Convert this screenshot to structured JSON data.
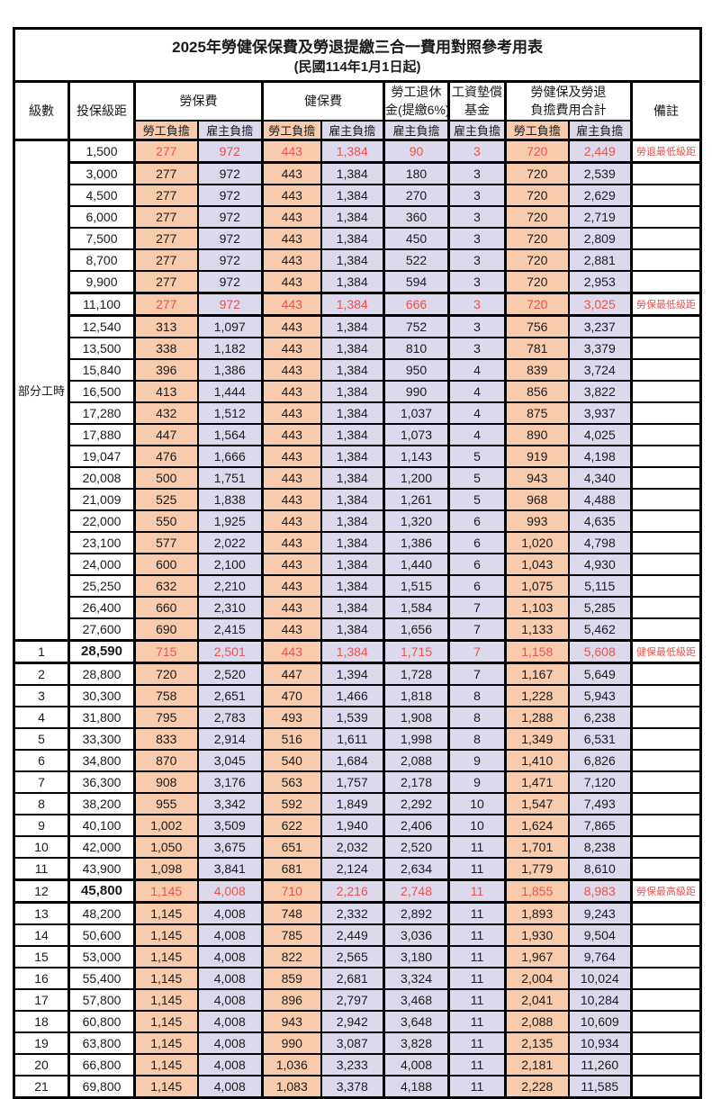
{
  "title": "2025年勞健保保費及勞退提繳三合一費用對照參考用表",
  "subtitle": "(民國114年1月1日起)",
  "colors": {
    "employee_bg": "#F8CBAD",
    "employer_bg": "#DCD9EC",
    "highlight_text": "#E9544F"
  },
  "headers": {
    "level": "級數",
    "bracket": "投保級距",
    "labor_insurance": "勞保費",
    "health_insurance": "健保費",
    "pension_line1": "勞工退休",
    "pension_line2": "金(提繳6%)",
    "wage_fund_line1": "工資墊償",
    "wage_fund_line2": "基金",
    "total_line1": "勞健保及勞退",
    "total_line2": "負擔費用合計",
    "notes": "備註",
    "employee_label": "勞工負擔",
    "employer_label": "雇主負擔"
  },
  "part_time_label": "部分工時",
  "part_time_rowspan": 23,
  "rows": [
    {
      "level": null,
      "bracket": "1,500",
      "values": [
        "277",
        "972",
        "443",
        "1,384",
        "90",
        "3",
        "720",
        "2,449"
      ],
      "note": "勞退最低級距",
      "highlight": true,
      "bold": false
    },
    {
      "level": null,
      "bracket": "3,000",
      "values": [
        "277",
        "972",
        "443",
        "1,384",
        "180",
        "3",
        "720",
        "2,539"
      ],
      "note": "",
      "highlight": false,
      "bold": false
    },
    {
      "level": null,
      "bracket": "4,500",
      "values": [
        "277",
        "972",
        "443",
        "1,384",
        "270",
        "3",
        "720",
        "2,629"
      ],
      "note": "",
      "highlight": false,
      "bold": false
    },
    {
      "level": null,
      "bracket": "6,000",
      "values": [
        "277",
        "972",
        "443",
        "1,384",
        "360",
        "3",
        "720",
        "2,719"
      ],
      "note": "",
      "highlight": false,
      "bold": false
    },
    {
      "level": null,
      "bracket": "7,500",
      "values": [
        "277",
        "972",
        "443",
        "1,384",
        "450",
        "3",
        "720",
        "2,809"
      ],
      "note": "",
      "highlight": false,
      "bold": false
    },
    {
      "level": null,
      "bracket": "8,700",
      "values": [
        "277",
        "972",
        "443",
        "1,384",
        "522",
        "3",
        "720",
        "2,881"
      ],
      "note": "",
      "highlight": false,
      "bold": false
    },
    {
      "level": null,
      "bracket": "9,900",
      "values": [
        "277",
        "972",
        "443",
        "1,384",
        "594",
        "3",
        "720",
        "2,953"
      ],
      "note": "",
      "highlight": false,
      "bold": false
    },
    {
      "level": null,
      "bracket": "11,100",
      "values": [
        "277",
        "972",
        "443",
        "1,384",
        "666",
        "3",
        "720",
        "3,025"
      ],
      "note": "勞保最低級距",
      "highlight": true,
      "bold": false
    },
    {
      "level": null,
      "bracket": "12,540",
      "values": [
        "313",
        "1,097",
        "443",
        "1,384",
        "752",
        "3",
        "756",
        "3,237"
      ],
      "note": "",
      "highlight": false,
      "bold": false
    },
    {
      "level": null,
      "bracket": "13,500",
      "values": [
        "338",
        "1,182",
        "443",
        "1,384",
        "810",
        "3",
        "781",
        "3,379"
      ],
      "note": "",
      "highlight": false,
      "bold": false
    },
    {
      "level": null,
      "bracket": "15,840",
      "values": [
        "396",
        "1,386",
        "443",
        "1,384",
        "950",
        "4",
        "839",
        "3,724"
      ],
      "note": "",
      "highlight": false,
      "bold": false
    },
    {
      "level": null,
      "bracket": "16,500",
      "values": [
        "413",
        "1,444",
        "443",
        "1,384",
        "990",
        "4",
        "856",
        "3,822"
      ],
      "note": "",
      "highlight": false,
      "bold": false
    },
    {
      "level": null,
      "bracket": "17,280",
      "values": [
        "432",
        "1,512",
        "443",
        "1,384",
        "1,037",
        "4",
        "875",
        "3,937"
      ],
      "note": "",
      "highlight": false,
      "bold": false
    },
    {
      "level": null,
      "bracket": "17,880",
      "values": [
        "447",
        "1,564",
        "443",
        "1,384",
        "1,073",
        "4",
        "890",
        "4,025"
      ],
      "note": "",
      "highlight": false,
      "bold": false
    },
    {
      "level": null,
      "bracket": "19,047",
      "values": [
        "476",
        "1,666",
        "443",
        "1,384",
        "1,143",
        "5",
        "919",
        "4,198"
      ],
      "note": "",
      "highlight": false,
      "bold": false
    },
    {
      "level": null,
      "bracket": "20,008",
      "values": [
        "500",
        "1,751",
        "443",
        "1,384",
        "1,200",
        "5",
        "943",
        "4,340"
      ],
      "note": "",
      "highlight": false,
      "bold": false
    },
    {
      "level": null,
      "bracket": "21,009",
      "values": [
        "525",
        "1,838",
        "443",
        "1,384",
        "1,261",
        "5",
        "968",
        "4,488"
      ],
      "note": "",
      "highlight": false,
      "bold": false
    },
    {
      "level": null,
      "bracket": "22,000",
      "values": [
        "550",
        "1,925",
        "443",
        "1,384",
        "1,320",
        "6",
        "993",
        "4,635"
      ],
      "note": "",
      "highlight": false,
      "bold": false
    },
    {
      "level": null,
      "bracket": "23,100",
      "values": [
        "577",
        "2,022",
        "443",
        "1,384",
        "1,386",
        "6",
        "1,020",
        "4,798"
      ],
      "note": "",
      "highlight": false,
      "bold": false
    },
    {
      "level": null,
      "bracket": "24,000",
      "values": [
        "600",
        "2,100",
        "443",
        "1,384",
        "1,440",
        "6",
        "1,043",
        "4,930"
      ],
      "note": "",
      "highlight": false,
      "bold": false
    },
    {
      "level": null,
      "bracket": "25,250",
      "values": [
        "632",
        "2,210",
        "443",
        "1,384",
        "1,515",
        "6",
        "1,075",
        "5,115"
      ],
      "note": "",
      "highlight": false,
      "bold": false
    },
    {
      "level": null,
      "bracket": "26,400",
      "values": [
        "660",
        "2,310",
        "443",
        "1,384",
        "1,584",
        "7",
        "1,103",
        "5,285"
      ],
      "note": "",
      "highlight": false,
      "bold": false
    },
    {
      "level": null,
      "bracket": "27,600",
      "values": [
        "690",
        "2,415",
        "443",
        "1,384",
        "1,656",
        "7",
        "1,133",
        "5,462"
      ],
      "note": "",
      "highlight": false,
      "bold": false
    },
    {
      "level": "1",
      "bracket": "28,590",
      "values": [
        "715",
        "2,501",
        "443",
        "1,384",
        "1,715",
        "7",
        "1,158",
        "5,608"
      ],
      "note": "健保最低級距",
      "highlight": true,
      "bold": true
    },
    {
      "level": "2",
      "bracket": "28,800",
      "values": [
        "720",
        "2,520",
        "447",
        "1,394",
        "1,728",
        "7",
        "1,167",
        "5,649"
      ],
      "note": "",
      "highlight": false,
      "bold": false
    },
    {
      "level": "3",
      "bracket": "30,300",
      "values": [
        "758",
        "2,651",
        "470",
        "1,466",
        "1,818",
        "8",
        "1,228",
        "5,943"
      ],
      "note": "",
      "highlight": false,
      "bold": false
    },
    {
      "level": "4",
      "bracket": "31,800",
      "values": [
        "795",
        "2,783",
        "493",
        "1,539",
        "1,908",
        "8",
        "1,288",
        "6,238"
      ],
      "note": "",
      "highlight": false,
      "bold": false
    },
    {
      "level": "5",
      "bracket": "33,300",
      "values": [
        "833",
        "2,914",
        "516",
        "1,611",
        "1,998",
        "8",
        "1,349",
        "6,531"
      ],
      "note": "",
      "highlight": false,
      "bold": false
    },
    {
      "level": "6",
      "bracket": "34,800",
      "values": [
        "870",
        "3,045",
        "540",
        "1,684",
        "2,088",
        "9",
        "1,410",
        "6,826"
      ],
      "note": "",
      "highlight": false,
      "bold": false
    },
    {
      "level": "7",
      "bracket": "36,300",
      "values": [
        "908",
        "3,176",
        "563",
        "1,757",
        "2,178",
        "9",
        "1,471",
        "7,120"
      ],
      "note": "",
      "highlight": false,
      "bold": false
    },
    {
      "level": "8",
      "bracket": "38,200",
      "values": [
        "955",
        "3,342",
        "592",
        "1,849",
        "2,292",
        "10",
        "1,547",
        "7,493"
      ],
      "note": "",
      "highlight": false,
      "bold": false
    },
    {
      "level": "9",
      "bracket": "40,100",
      "values": [
        "1,002",
        "3,509",
        "622",
        "1,940",
        "2,406",
        "10",
        "1,624",
        "7,865"
      ],
      "note": "",
      "highlight": false,
      "bold": false
    },
    {
      "level": "10",
      "bracket": "42,000",
      "values": [
        "1,050",
        "3,675",
        "651",
        "2,032",
        "2,520",
        "11",
        "1,701",
        "8,238"
      ],
      "note": "",
      "highlight": false,
      "bold": false
    },
    {
      "level": "11",
      "bracket": "43,900",
      "values": [
        "1,098",
        "3,841",
        "681",
        "2,124",
        "2,634",
        "11",
        "1,779",
        "8,610"
      ],
      "note": "",
      "highlight": false,
      "bold": false
    },
    {
      "level": "12",
      "bracket": "45,800",
      "values": [
        "1,145",
        "4,008",
        "710",
        "2,216",
        "2,748",
        "11",
        "1,855",
        "8,983"
      ],
      "note": "勞保最高級距",
      "highlight": true,
      "bold": true
    },
    {
      "level": "13",
      "bracket": "48,200",
      "values": [
        "1,145",
        "4,008",
        "748",
        "2,332",
        "2,892",
        "11",
        "1,893",
        "9,243"
      ],
      "note": "",
      "highlight": false,
      "bold": false
    },
    {
      "level": "14",
      "bracket": "50,600",
      "values": [
        "1,145",
        "4,008",
        "785",
        "2,449",
        "3,036",
        "11",
        "1,930",
        "9,504"
      ],
      "note": "",
      "highlight": false,
      "bold": false
    },
    {
      "level": "15",
      "bracket": "53,000",
      "values": [
        "1,145",
        "4,008",
        "822",
        "2,565",
        "3,180",
        "11",
        "1,967",
        "9,764"
      ],
      "note": "",
      "highlight": false,
      "bold": false
    },
    {
      "level": "16",
      "bracket": "55,400",
      "values": [
        "1,145",
        "4,008",
        "859",
        "2,681",
        "3,324",
        "11",
        "2,004",
        "10,024"
      ],
      "note": "",
      "highlight": false,
      "bold": false
    },
    {
      "level": "17",
      "bracket": "57,800",
      "values": [
        "1,145",
        "4,008",
        "896",
        "2,797",
        "3,468",
        "11",
        "2,041",
        "10,284"
      ],
      "note": "",
      "highlight": false,
      "bold": false
    },
    {
      "level": "18",
      "bracket": "60,800",
      "values": [
        "1,145",
        "4,008",
        "943",
        "2,942",
        "3,648",
        "11",
        "2,088",
        "10,609"
      ],
      "note": "",
      "highlight": false,
      "bold": false
    },
    {
      "level": "19",
      "bracket": "63,800",
      "values": [
        "1,145",
        "4,008",
        "990",
        "3,087",
        "3,828",
        "11",
        "2,135",
        "10,934"
      ],
      "note": "",
      "highlight": false,
      "bold": false
    },
    {
      "level": "20",
      "bracket": "66,800",
      "values": [
        "1,145",
        "4,008",
        "1,036",
        "3,233",
        "4,008",
        "11",
        "2,181",
        "11,260"
      ],
      "note": "",
      "highlight": false,
      "bold": false
    },
    {
      "level": "21",
      "bracket": "69,800",
      "values": [
        "1,145",
        "4,008",
        "1,083",
        "3,378",
        "4,188",
        "11",
        "2,228",
        "11,585"
      ],
      "note": "",
      "highlight": false,
      "bold": false
    }
  ]
}
